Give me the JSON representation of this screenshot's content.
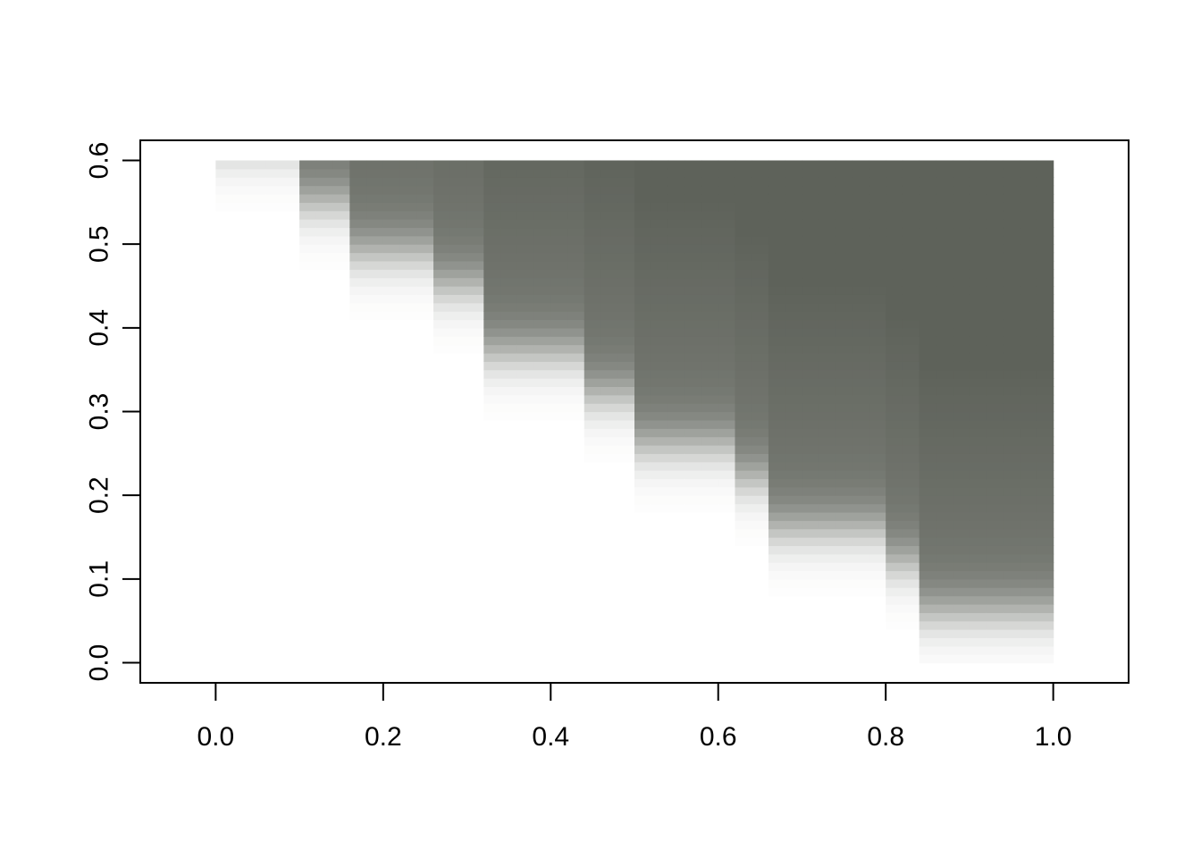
{
  "chart_data": {
    "type": "heatmap",
    "title": "",
    "xlabel": "",
    "ylabel": "",
    "xlim": [
      -0.09,
      1.09
    ],
    "ylim": [
      -0.024,
      0.624
    ],
    "x_ticks": [
      "0.0",
      "0.2",
      "0.4",
      "0.6",
      "0.8",
      "1.0"
    ],
    "y_ticks": [
      "0.0",
      "0.1",
      "0.2",
      "0.3",
      "0.4",
      "0.5",
      "0.6"
    ],
    "grid": false,
    "legend": "none",
    "x_range": [
      0,
      1
    ],
    "y_range": [
      0,
      0.6
    ],
    "color_low": "#ffffff",
    "color_high": "#5e625a",
    "field": "smooth staircase boundary: values near 0 below/left of a descending step edge, high (dark gray) above/right of it",
    "boundary_steps": [
      {
        "x_start": 0.0,
        "x_end": 0.1,
        "y_edge": 0.62
      },
      {
        "x_start": 0.1,
        "x_end": 0.17,
        "y_edge": 0.55
      },
      {
        "x_start": 0.17,
        "x_end": 0.27,
        "y_edge": 0.49
      },
      {
        "x_start": 0.27,
        "x_end": 0.33,
        "y_edge": 0.45
      },
      {
        "x_start": 0.33,
        "x_end": 0.44,
        "y_edge": 0.37
      },
      {
        "x_start": 0.44,
        "x_end": 0.5,
        "y_edge": 0.32
      },
      {
        "x_start": 0.5,
        "x_end": 0.62,
        "y_edge": 0.26
      },
      {
        "x_start": 0.62,
        "x_end": 0.67,
        "y_edge": 0.22
      },
      {
        "x_start": 0.67,
        "x_end": 0.8,
        "y_edge": 0.16
      },
      {
        "x_start": 0.8,
        "x_end": 0.85,
        "y_edge": 0.12
      },
      {
        "x_start": 0.85,
        "x_end": 1.0,
        "y_edge": 0.06
      }
    ]
  }
}
